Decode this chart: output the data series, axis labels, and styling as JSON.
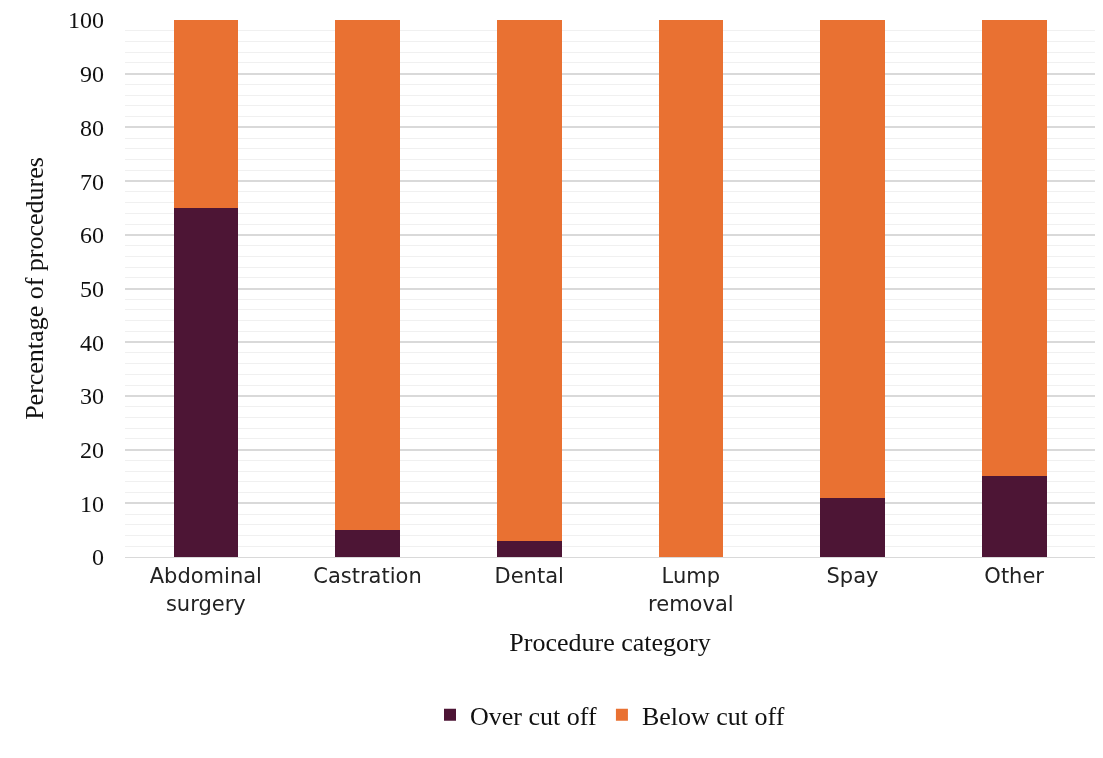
{
  "chart_data": {
    "type": "bar",
    "stacked": true,
    "xlabel": "Procedure category",
    "ylabel": "Percentage of procedures",
    "categories": [
      "Abdominal surgery",
      "Castration",
      "Dental",
      "Lump removal",
      "Spay",
      "Other"
    ],
    "series": [
      {
        "name": "Over cut off",
        "color": "#4d1535",
        "values": [
          65,
          5,
          3,
          0,
          11,
          15
        ]
      },
      {
        "name": "Below cut off",
        "color": "#e97132",
        "values": [
          35,
          95,
          97,
          100,
          89,
          85
        ]
      }
    ],
    "ylim": [
      0,
      100
    ],
    "yticks": [
      0,
      10,
      20,
      30,
      40,
      50,
      60,
      70,
      80,
      90,
      100
    ],
    "grid": "y",
    "legend": "bottom"
  }
}
